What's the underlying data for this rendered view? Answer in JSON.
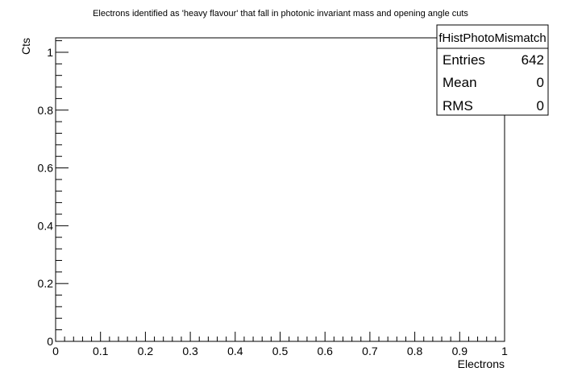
{
  "chart_data": {
    "type": "bar",
    "title": "Electrons identified as 'heavy flavour' that fall in photonic invariant mass and opening angle cuts",
    "xlabel": "Electrons",
    "ylabel": "Cts",
    "xlim": [
      0,
      1
    ],
    "ylim": [
      0,
      1.05
    ],
    "x_ticks": [
      "0",
      "0.1",
      "0.2",
      "0.3",
      "0.4",
      "0.5",
      "0.6",
      "0.7",
      "0.8",
      "0.9",
      "1"
    ],
    "y_ticks": [
      "0",
      "0.2",
      "0.4",
      "0.6",
      "0.8",
      "1"
    ],
    "x_tick_values": [
      0,
      0.1,
      0.2,
      0.3,
      0.4,
      0.5,
      0.6,
      0.7,
      0.8,
      0.9,
      1
    ],
    "y_tick_values": [
      0,
      0.2,
      0.4,
      0.6,
      0.8,
      1
    ],
    "series": [],
    "grid": false,
    "legend": "none"
  },
  "stats_box": {
    "name": "fHistPhotoMismatch",
    "rows": [
      {
        "label": "Entries",
        "value": "642"
      },
      {
        "label": "Mean",
        "value": "0"
      },
      {
        "label": "RMS",
        "value": "0"
      }
    ]
  }
}
